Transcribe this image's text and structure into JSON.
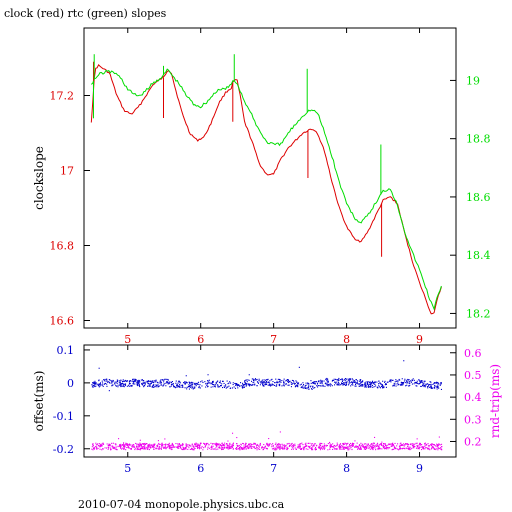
{
  "title": "clock (red) rtc (green) slopes",
  "footer": "2010-07-04 monopole.physics.ubc.ca",
  "colors": {
    "clock": "#dd0000",
    "rtc": "#00dd00",
    "offset": "#0000cc",
    "rndtrip": "#ee00ee",
    "frame": "#000000"
  },
  "chart_data": [
    {
      "type": "line",
      "title": "clock (red) rtc (green) slopes",
      "xlim": [
        4.4,
        9.5
      ],
      "x_ticks": [
        "5",
        "6",
        "7",
        "8",
        "9"
      ],
      "ylabel": "clockslope",
      "ylim": [
        16.58,
        17.38
      ],
      "y_ticks": [
        "16.6",
        "16.8",
        "17",
        "17.2"
      ],
      "y2lim": [
        18.15,
        19.18
      ],
      "y2_ticks": [
        "18.2",
        "18.4",
        "18.6",
        "18.8",
        "19"
      ],
      "series": [
        {
          "name": "clock",
          "axis": "left",
          "x": [
            4.5,
            4.55,
            4.6,
            4.75,
            4.85,
            4.95,
            5.05,
            5.15,
            5.25,
            5.35,
            5.5,
            5.55,
            5.6,
            5.65,
            5.75,
            5.85,
            5.95,
            6.05,
            6.15,
            6.25,
            6.35,
            6.42,
            6.45,
            6.5,
            6.55,
            6.6,
            6.7,
            6.8,
            6.9,
            7.0,
            7.1,
            7.2,
            7.3,
            7.4,
            7.5,
            7.55,
            7.6,
            7.7,
            7.8,
            7.9,
            8.0,
            8.1,
            8.2,
            8.3,
            8.4,
            8.5,
            8.6,
            8.7,
            8.8,
            8.9,
            9.0,
            9.1,
            9.15,
            9.2,
            9.25,
            9.3
          ],
          "y": [
            17.13,
            17.27,
            17.28,
            17.26,
            17.2,
            17.16,
            17.15,
            17.17,
            17.2,
            17.23,
            17.25,
            17.27,
            17.26,
            17.22,
            17.15,
            17.1,
            17.08,
            17.09,
            17.13,
            17.18,
            17.21,
            17.22,
            17.24,
            17.24,
            17.19,
            17.13,
            17.08,
            17.02,
            16.99,
            16.99,
            17.03,
            17.06,
            17.08,
            17.1,
            17.11,
            17.11,
            17.1,
            17.05,
            16.97,
            16.9,
            16.85,
            16.82,
            16.81,
            16.84,
            16.88,
            16.92,
            16.93,
            16.91,
            16.83,
            16.76,
            16.7,
            16.65,
            16.62,
            16.62,
            16.66,
            16.69
          ]
        },
        {
          "name": "rtc",
          "axis": "right",
          "x": [
            4.5,
            4.6,
            4.7,
            4.8,
            4.9,
            5.0,
            5.1,
            5.2,
            5.3,
            5.4,
            5.5,
            5.55,
            5.6,
            5.7,
            5.8,
            5.9,
            6.0,
            6.1,
            6.2,
            6.3,
            6.4,
            6.45,
            6.5,
            6.6,
            6.7,
            6.8,
            6.9,
            7.0,
            7.1,
            7.2,
            7.3,
            7.4,
            7.5,
            7.6,
            7.7,
            7.8,
            7.9,
            8.0,
            8.1,
            8.2,
            8.3,
            8.4,
            8.5,
            8.6,
            8.7,
            8.8,
            8.9,
            9.0,
            9.1,
            9.15,
            9.2,
            9.25,
            9.3
          ],
          "y": [
            18.99,
            19.02,
            19.03,
            19.03,
            19.01,
            18.97,
            18.95,
            18.95,
            18.98,
            19.0,
            19.02,
            19.04,
            19.02,
            18.99,
            18.95,
            18.92,
            18.91,
            18.93,
            18.96,
            18.97,
            18.98,
            19.0,
            18.99,
            18.93,
            18.88,
            18.83,
            18.79,
            18.78,
            18.78,
            18.82,
            18.85,
            18.88,
            18.9,
            18.89,
            18.82,
            18.74,
            18.65,
            18.58,
            18.53,
            18.51,
            18.54,
            18.58,
            18.62,
            18.63,
            18.57,
            18.48,
            18.41,
            18.35,
            18.28,
            18.24,
            18.22,
            18.26,
            18.29
          ]
        }
      ],
      "spikes": [
        {
          "series": "clock",
          "x": 4.53,
          "y": 17.29
        },
        {
          "series": "clock",
          "x": 5.49,
          "y": 17.14
        },
        {
          "series": "clock",
          "x": 6.44,
          "y": 17.13
        },
        {
          "series": "clock",
          "x": 7.47,
          "y": 16.98
        },
        {
          "series": "clock",
          "x": 8.48,
          "y": 16.77
        },
        {
          "series": "rtc",
          "x": 4.53,
          "y": 18.87
        },
        {
          "series": "rtc",
          "x": 4.54,
          "y": 19.09
        },
        {
          "series": "rtc",
          "x": 5.49,
          "y": 19.05
        },
        {
          "series": "rtc",
          "x": 6.46,
          "y": 19.09
        },
        {
          "series": "rtc",
          "x": 7.46,
          "y": 19.04
        },
        {
          "series": "rtc",
          "x": 8.47,
          "y": 18.78
        }
      ]
    },
    {
      "type": "scatter",
      "xlim": [
        4.4,
        9.5
      ],
      "x_ticks": [
        "5",
        "6",
        "7",
        "8",
        "9"
      ],
      "ylabel": "offset(ms)",
      "ylim": [
        -0.225,
        0.115
      ],
      "y_ticks": [
        "0.1",
        "0",
        "-0.1",
        "-0.2"
      ],
      "y2label": "rnd-trip(ms)",
      "y2lim": [
        0.13,
        0.635
      ],
      "y2_ticks": [
        "0.2",
        "0.3",
        "0.4",
        "0.5",
        "0.6"
      ],
      "series": [
        {
          "name": "offset",
          "axis": "left",
          "x": [
            4.5,
            4.7,
            4.9,
            5.1,
            5.3,
            5.5,
            5.7,
            5.9,
            6.1,
            6.3,
            6.5,
            6.7,
            6.9,
            7.1,
            7.3,
            7.5,
            7.7,
            7.9,
            8.1,
            8.3,
            8.5,
            8.7,
            8.9,
            9.1,
            9.3
          ],
          "y": [
            -0.003,
            0.002,
            0.0,
            0.003,
            -0.002,
            0.003,
            -0.004,
            -0.007,
            0.0,
            -0.002,
            -0.008,
            0.005,
            0.002,
            0.003,
            0.0,
            -0.008,
            0.002,
            0.005,
            0.003,
            -0.002,
            -0.003,
            0.004,
            0.003,
            -0.003,
            -0.008
          ]
        },
        {
          "name": "rnd-trip",
          "axis": "right",
          "x": [
            4.5,
            4.9,
            5.3,
            5.7,
            6.1,
            6.5,
            6.9,
            7.3,
            7.7,
            8.1,
            8.5,
            8.9,
            9.3
          ],
          "y": [
            0.18,
            0.18,
            0.18,
            0.18,
            0.18,
            0.18,
            0.18,
            0.18,
            0.18,
            0.18,
            0.18,
            0.18,
            0.18
          ]
        }
      ]
    }
  ]
}
